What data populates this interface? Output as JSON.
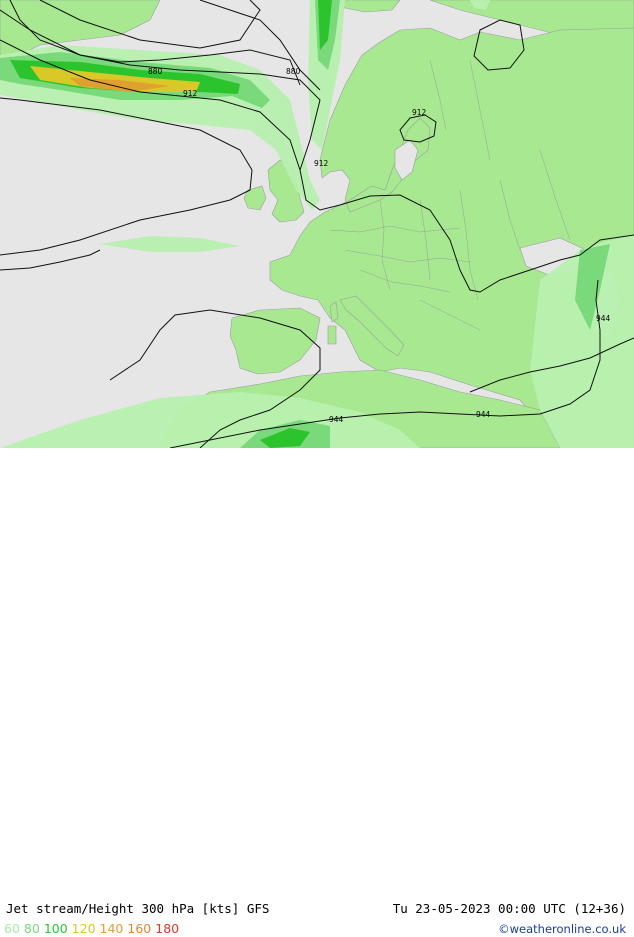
{
  "title": "Jet stream/Height 300 hPa [kts] GFS",
  "valid_time": "Tu 23-05-2023 00:00 UTC (12+36)",
  "credit": "©weatheronline.co.uk",
  "legend": [
    {
      "value": "60",
      "color": "#a8eba8"
    },
    {
      "value": "80",
      "color": "#7ad97a"
    },
    {
      "value": "100",
      "color": "#2cc42c"
    },
    {
      "value": "120",
      "color": "#d8c828"
    },
    {
      "value": "140",
      "color": "#e0a030"
    },
    {
      "value": "160",
      "color": "#e08838"
    },
    {
      "value": "180",
      "color": "#d83a2a"
    }
  ],
  "contour_labels": [
    "880",
    "880",
    "912",
    "912",
    "912",
    "944",
    "944",
    "944"
  ],
  "colors": {
    "sea": "#e6e6e6",
    "land": "#a8e890",
    "border": "#9aa0a0",
    "jet_60": "#b8f0b0",
    "jet_80": "#7ad97a",
    "jet_100": "#2cc42c",
    "jet_120": "#d8c828",
    "jet_140": "#e0a030"
  }
}
